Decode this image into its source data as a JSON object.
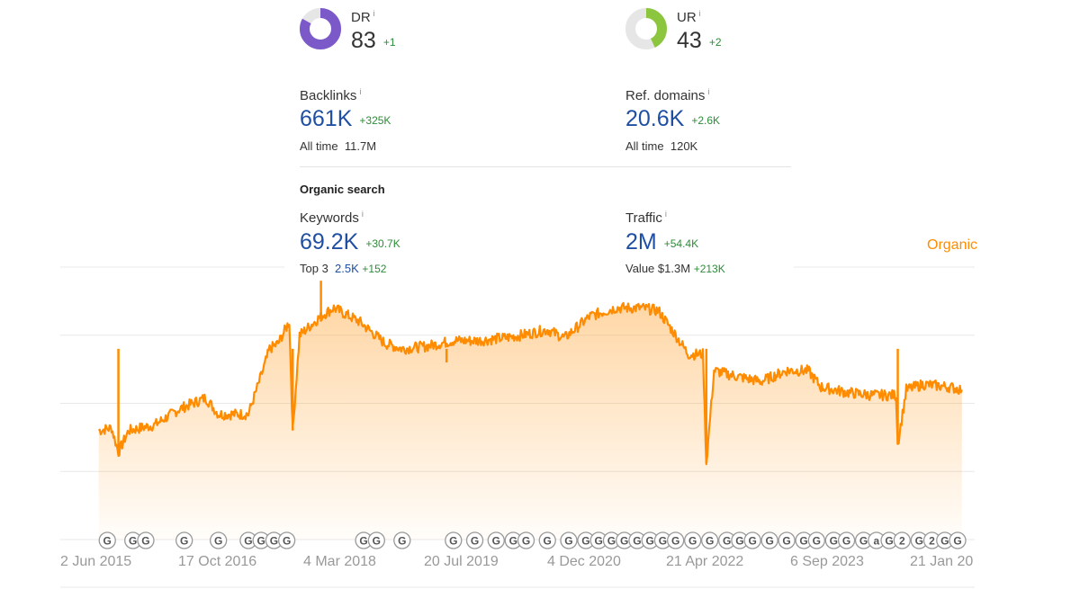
{
  "metrics": {
    "dr": {
      "label": "DR",
      "value": "83",
      "delta": "+1",
      "ring_fraction": 0.83,
      "ring_color": "#7b59c9"
    },
    "ur": {
      "label": "UR",
      "value": "43",
      "delta": "+2",
      "ring_fraction": 0.43,
      "ring_color": "#8cc63f"
    },
    "info_glyph": "i"
  },
  "backlinks": {
    "label": "Backlinks",
    "value": "661K",
    "delta": "+325K",
    "alltime_label": "All time",
    "alltime_value": "11.7M"
  },
  "ref_domains": {
    "label": "Ref. domains",
    "value": "20.6K",
    "delta": "+2.6K",
    "alltime_label": "All time",
    "alltime_value": "120K"
  },
  "organic_search": {
    "title": "Organic search",
    "keywords": {
      "label": "Keywords",
      "value": "69.2K",
      "delta": "+30.7K",
      "top3_label": "Top 3",
      "top3_value": "2.5K",
      "top3_delta": "+152"
    },
    "traffic": {
      "label": "Traffic",
      "value": "2M",
      "delta": "+54.4K",
      "value_label": "Value",
      "value_amount": "$1.3M",
      "value_delta": "+213K"
    }
  },
  "chart_data": {
    "type": "area",
    "series_name": "Organic",
    "color": "#ff8c00",
    "x_tick_labels": [
      "2 Jun 2015",
      "17 Oct 2016",
      "4 Mar 2018",
      "20 Jul 2019",
      "4 Dec 2020",
      "21 Apr 2022",
      "6 Sep 2023",
      "21 Jan 20"
    ],
    "x_range": [
      2015.0,
      2025.7
    ],
    "y_range": [
      0,
      100
    ],
    "gridlines": 5,
    "points": [
      [
        2015.45,
        40
      ],
      [
        2015.6,
        41
      ],
      [
        2015.68,
        32
      ],
      [
        2015.8,
        40
      ],
      [
        2016.1,
        42
      ],
      [
        2016.4,
        48
      ],
      [
        2016.7,
        52
      ],
      [
        2016.85,
        46
      ],
      [
        2017.2,
        46
      ],
      [
        2017.35,
        60
      ],
      [
        2017.45,
        70
      ],
      [
        2017.55,
        72
      ],
      [
        2017.68,
        80
      ],
      [
        2017.72,
        40
      ],
      [
        2017.8,
        75
      ],
      [
        2018.05,
        82
      ],
      [
        2018.2,
        85
      ],
      [
        2018.5,
        80
      ],
      [
        2018.8,
        72
      ],
      [
        2019.0,
        70
      ],
      [
        2019.3,
        71
      ],
      [
        2019.6,
        73
      ],
      [
        2019.9,
        73
      ],
      [
        2020.2,
        74
      ],
      [
        2020.4,
        75
      ],
      [
        2020.7,
        77
      ],
      [
        2020.9,
        74
      ],
      [
        2021.2,
        82
      ],
      [
        2021.5,
        85
      ],
      [
        2021.8,
        85
      ],
      [
        2022.0,
        84
      ],
      [
        2022.2,
        75
      ],
      [
        2022.35,
        68
      ],
      [
        2022.52,
        68
      ],
      [
        2022.56,
        28
      ],
      [
        2022.65,
        62
      ],
      [
        2022.9,
        60
      ],
      [
        2023.2,
        58
      ],
      [
        2023.5,
        62
      ],
      [
        2023.75,
        62
      ],
      [
        2023.9,
        56
      ],
      [
        2024.2,
        54
      ],
      [
        2024.5,
        53
      ],
      [
        2024.78,
        53
      ],
      [
        2024.8,
        35
      ],
      [
        2024.9,
        55
      ],
      [
        2025.1,
        57
      ],
      [
        2025.4,
        56
      ],
      [
        2025.55,
        55
      ]
    ],
    "spikes": [
      [
        2015.68,
        32
      ],
      [
        2017.72,
        40
      ],
      [
        2018.05,
        95
      ],
      [
        2019.52,
        65
      ],
      [
        2022.56,
        28
      ],
      [
        2024.8,
        35
      ]
    ],
    "annotation_markers": [
      {
        "x": 2015.55,
        "label": "G"
      },
      {
        "x": 2015.85,
        "label": "G"
      },
      {
        "x": 2016.0,
        "label": "G"
      },
      {
        "x": 2016.45,
        "label": "G"
      },
      {
        "x": 2016.85,
        "label": "G"
      },
      {
        "x": 2017.2,
        "label": "G"
      },
      {
        "x": 2017.35,
        "label": "G"
      },
      {
        "x": 2017.5,
        "label": "G"
      },
      {
        "x": 2017.65,
        "label": "G"
      },
      {
        "x": 2018.55,
        "label": "G"
      },
      {
        "x": 2018.7,
        "label": "G"
      },
      {
        "x": 2019.0,
        "label": "G"
      },
      {
        "x": 2019.6,
        "label": "G"
      },
      {
        "x": 2019.85,
        "label": "G"
      },
      {
        "x": 2020.1,
        "label": "G"
      },
      {
        "x": 2020.3,
        "label": "G"
      },
      {
        "x": 2020.45,
        "label": "G"
      },
      {
        "x": 2020.7,
        "label": "G"
      },
      {
        "x": 2020.95,
        "label": "G"
      },
      {
        "x": 2021.15,
        "label": "G"
      },
      {
        "x": 2021.3,
        "label": "G"
      },
      {
        "x": 2021.45,
        "label": "G"
      },
      {
        "x": 2021.6,
        "label": "G"
      },
      {
        "x": 2021.75,
        "label": "G"
      },
      {
        "x": 2021.9,
        "label": "G"
      },
      {
        "x": 2022.05,
        "label": "G"
      },
      {
        "x": 2022.2,
        "label": "G"
      },
      {
        "x": 2022.4,
        "label": "G"
      },
      {
        "x": 2022.6,
        "label": "G"
      },
      {
        "x": 2022.8,
        "label": "G"
      },
      {
        "x": 2022.95,
        "label": "G"
      },
      {
        "x": 2023.1,
        "label": "G"
      },
      {
        "x": 2023.3,
        "label": "G"
      },
      {
        "x": 2023.5,
        "label": "G"
      },
      {
        "x": 2023.7,
        "label": "G"
      },
      {
        "x": 2023.85,
        "label": "G"
      },
      {
        "x": 2024.05,
        "label": "G"
      },
      {
        "x": 2024.2,
        "label": "G"
      },
      {
        "x": 2024.4,
        "label": "G"
      },
      {
        "x": 2024.55,
        "label": "a"
      },
      {
        "x": 2024.7,
        "label": "G"
      },
      {
        "x": 2024.85,
        "label": "2"
      },
      {
        "x": 2025.05,
        "label": "G"
      },
      {
        "x": 2025.2,
        "label": "2"
      },
      {
        "x": 2025.35,
        "label": "G"
      },
      {
        "x": 2025.5,
        "label": "G"
      }
    ]
  }
}
